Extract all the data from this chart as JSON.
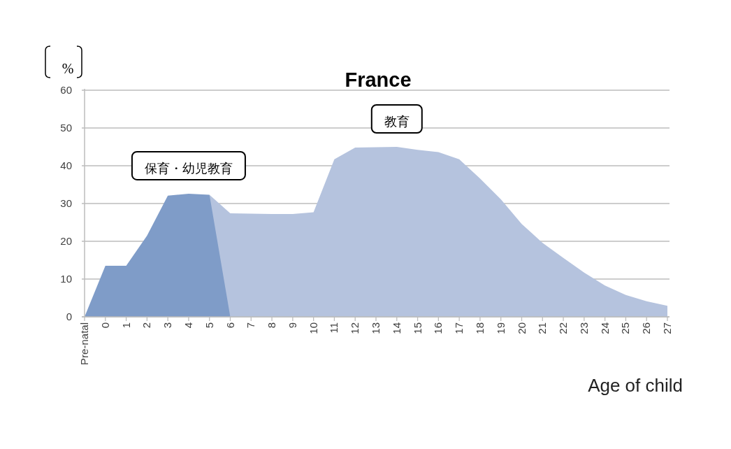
{
  "chart_data": {
    "type": "area",
    "title": "France",
    "xlabel": "Age of child",
    "ylabel": "%",
    "categories": [
      "Pre-natal",
      "0",
      "1",
      "2",
      "3",
      "4",
      "5",
      "6",
      "7",
      "8",
      "9",
      "10",
      "11",
      "12",
      "13",
      "14",
      "15",
      "16",
      "17",
      "18",
      "19",
      "20",
      "21",
      "22",
      "23",
      "24",
      "25",
      "26",
      "27"
    ],
    "series": [
      {
        "name": "教育",
        "color": "#b5c3de",
        "values": [
          null,
          null,
          null,
          null,
          null,
          null,
          32.3,
          27.4,
          27.3,
          27.2,
          27.2,
          27.7,
          41.7,
          44.8,
          44.9,
          45,
          44.2,
          43.6,
          41.7,
          36.6,
          31.1,
          24.6,
          19.6,
          15.6,
          11.7,
          8.3,
          5.8,
          4.1,
          2.9
        ]
      },
      {
        "name": "保育・幼児教育",
        "color": "#7f9cc8",
        "values": [
          0,
          13.5,
          13.5,
          21.5,
          32.1,
          32.6,
          32.3,
          0,
          null,
          null,
          null,
          null,
          null,
          null,
          null,
          null,
          null,
          null,
          null,
          null,
          null,
          null,
          null,
          null,
          null,
          null,
          null,
          null,
          null
        ]
      }
    ],
    "ylim": [
      0,
      60
    ],
    "yticks": [
      0,
      10,
      20,
      30,
      40,
      50,
      60
    ],
    "grid": "y"
  }
}
